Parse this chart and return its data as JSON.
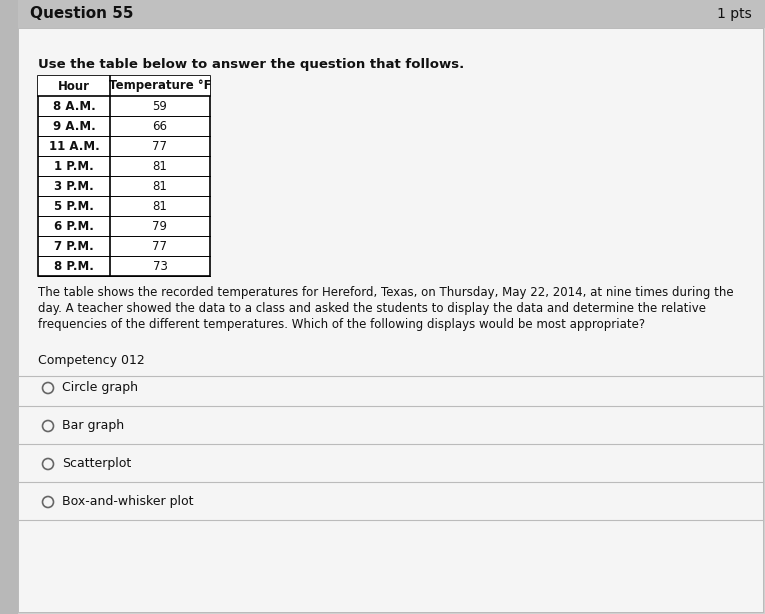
{
  "question_number": "Question 55",
  "pts": "1 pts",
  "instruction": "Use the table below to answer the question that follows.",
  "table_headers": [
    "Hour",
    "Temperature °F"
  ],
  "table_rows": [
    [
      "8 A.M.",
      "59"
    ],
    [
      "9 A.M.",
      "66"
    ],
    [
      "11 A.M.",
      "77"
    ],
    [
      "1 P.M.",
      "81"
    ],
    [
      "3 P.M.",
      "81"
    ],
    [
      "5 P.M.",
      "81"
    ],
    [
      "6 P.M.",
      "79"
    ],
    [
      "7 P.M.",
      "77"
    ],
    [
      "8 P.M.",
      "73"
    ]
  ],
  "body_text_lines": [
    "The table shows the recorded temperatures for Hereford, Texas, on Thursday, May 22, 2014, at nine times during the",
    "day. A teacher showed the data to a class and asked the students to display the data and determine the relative",
    "frequencies of the different temperatures. Which of the following displays would be most appropriate?"
  ],
  "competency": "Competency 012",
  "options": [
    "Circle graph",
    "Bar graph",
    "Scatterplot",
    "Box-and-whisker plot"
  ],
  "bg_color": "#d0d0d0",
  "header_bg": "#c8c8c8",
  "white_bg": "#f5f5f5",
  "table_border": "#000000",
  "text_color": "#111111",
  "option_line_color": "#bbbbbb",
  "header_strip_color": "#c0c0c0"
}
